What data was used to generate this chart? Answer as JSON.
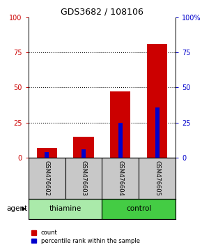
{
  "title": "GDS3682 / 108106",
  "samples": [
    "GSM476602",
    "GSM476603",
    "GSM476604",
    "GSM476605"
  ],
  "count_values": [
    7,
    15,
    47,
    81
  ],
  "percentile_values": [
    4,
    6,
    25,
    36
  ],
  "groups": [
    {
      "label": "thiamine",
      "indices": [
        0,
        1
      ],
      "color": "#aaeaaa"
    },
    {
      "label": "control",
      "indices": [
        2,
        3
      ],
      "color": "#44cc44"
    }
  ],
  "group_label": "agent",
  "ylim_left": [
    0,
    100
  ],
  "ylim_right": [
    0,
    100
  ],
  "yticks": [
    0,
    25,
    50,
    75,
    100
  ],
  "ytick_labels_left": [
    "0",
    "25",
    "50",
    "75",
    "100"
  ],
  "ytick_labels_right": [
    "0",
    "25",
    "50",
    "75",
    "100%"
  ],
  "bar_color_red": "#cc0000",
  "bar_color_blue": "#0000cc",
  "red_bar_width": 0.55,
  "blue_bar_width": 0.12,
  "bg_plot": "#ffffff",
  "bg_label_area": "#c8c8c8",
  "legend_count": "count",
  "legend_pct": "percentile rank within the sample"
}
